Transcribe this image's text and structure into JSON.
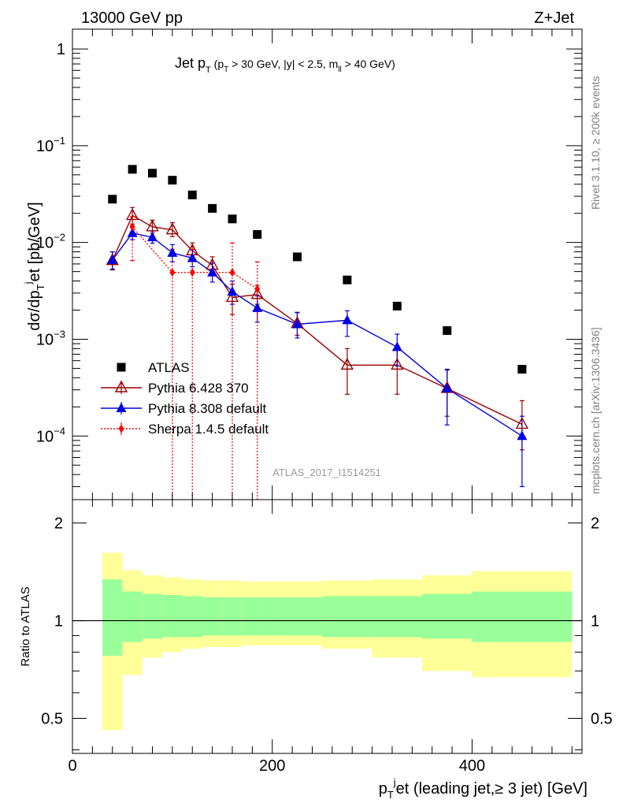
{
  "header": {
    "energy_label": "13000 GeV pp",
    "process_label": "Z+Jet"
  },
  "side_labels": {
    "rivet": "Rivet 3.1.10, ≥ 200k events",
    "mcplots": "mcplots.cern.ch [arXiv:1306.3436]"
  },
  "analysis_id": "ATLAS_2017_I1514251",
  "colors": {
    "atlas": "#000000",
    "pythia6": "#990000",
    "pythia8": "#0000e0",
    "sherpa": "#ff0000",
    "band_inner": "#99ff99",
    "band_outer": "#ffff99"
  },
  "chart_data": [
    {
      "type": "scatter",
      "title": "Jet p_T (p_T > 30 GeV, |y| < 2.5, m_ll > 40 GeV)",
      "title_parts": {
        "main": "Jet p",
        "main_sub": "T",
        "open": " (p",
        "open_sub": "T",
        "mid": " > 30 GeV, |y| < 2.5, m",
        "mid_sub": "ll",
        "close": " > 40 GeV)"
      },
      "ylabel": "dσ/dp_T^jet [pb/GeV]",
      "ylabel_parts": {
        "a": "dσ/dp",
        "sub": "T",
        "sup": "j",
        "b": "et [pb/GeV]"
      },
      "yscale": "log",
      "ylim": [
        2.2e-05,
        1.6
      ],
      "xlim": [
        0,
        510
      ],
      "y_ticks": [
        {
          "value": 1,
          "label": "1"
        },
        {
          "value": 0.1,
          "label": "10",
          "exp": "−1"
        },
        {
          "value": 0.01,
          "label": "10",
          "exp": "−2"
        },
        {
          "value": 0.001,
          "label": "10",
          "exp": "−3"
        },
        {
          "value": 0.0001,
          "label": "10",
          "exp": "−4"
        }
      ],
      "legend_position": "lower-left",
      "series": [
        {
          "name": "ATLAS",
          "marker": "square",
          "x": [
            40,
            60,
            80,
            100,
            120,
            140,
            160,
            185,
            225,
            275,
            325,
            375,
            450
          ],
          "y": [
            0.028,
            0.057,
            0.052,
            0.044,
            0.031,
            0.0225,
            0.0175,
            0.0121,
            0.0071,
            0.0041,
            0.0022,
            0.00123,
            0.00049
          ]
        },
        {
          "name": "Pythia 6.428 370",
          "marker": "open-triangle",
          "x": [
            40,
            60,
            80,
            100,
            120,
            140,
            160,
            185,
            225,
            275,
            325,
            375,
            450
          ],
          "y": [
            0.0065,
            0.019,
            0.0145,
            0.0135,
            0.0082,
            0.0058,
            0.0027,
            0.0029,
            0.00145,
            0.00054,
            0.00054,
            0.00031,
            0.000132
          ],
          "err_low": [
            0.0013,
            0.0035,
            0.002,
            0.002,
            0.0015,
            0.0012,
            0.0009,
            0.0006,
            0.00035,
            0.00027,
            0.00027,
            0.00015,
            6e-05
          ],
          "err_high": [
            0.0015,
            0.004,
            0.0025,
            0.0025,
            0.0017,
            0.0013,
            0.001,
            0.0007,
            0.00045,
            0.00026,
            0.00026,
            0.00017,
            0.0001
          ]
        },
        {
          "name": "Pythia 8.308 default",
          "marker": "triangle",
          "x": [
            40,
            60,
            80,
            100,
            120,
            140,
            160,
            185,
            225,
            275,
            325,
            375,
            450
          ],
          "y": [
            0.0066,
            0.0125,
            0.0113,
            0.0078,
            0.0069,
            0.0049,
            0.0031,
            0.0021,
            0.00143,
            0.00157,
            0.00083,
            0.00031,
            0.0001
          ],
          "err_low": [
            0.0013,
            0.0018,
            0.0015,
            0.0015,
            0.0013,
            0.001,
            0.0008,
            0.0006,
            0.0004,
            0.0005,
            0.0003,
            0.00018,
            7e-05
          ],
          "err_high": [
            0.0014,
            0.0022,
            0.0018,
            0.0017,
            0.0015,
            0.0012,
            0.0009,
            0.0007,
            0.00045,
            0.0004,
            0.0003,
            0.00018,
            6e-05
          ]
        },
        {
          "name": "Sherpa 1.4.5 default",
          "marker": "diamond",
          "x": [
            60,
            100,
            120,
            160,
            185
          ],
          "y": [
            0.0145,
            0.0049,
            0.0049,
            0.0049,
            0.0033
          ],
          "err_low": [
            0.008,
            0.0049,
            0.0049,
            0.0049,
            0.0033
          ],
          "err_high": [
            0.004,
            0.0036,
            0.0036,
            0.005,
            0.003
          ]
        }
      ]
    },
    {
      "type": "area",
      "ylabel": "Ratio to ATLAS",
      "ylim": [
        0.39,
        2.36
      ],
      "xlim": [
        0,
        510
      ],
      "reference_line": 1,
      "y_ticks": [
        {
          "value": 2,
          "label": "2"
        },
        {
          "value": 1,
          "label": "1"
        },
        {
          "value": 0.5,
          "label": "0.5"
        }
      ],
      "x_ticks": [
        {
          "value": 0,
          "label": "0"
        },
        {
          "value": 200,
          "label": "200"
        },
        {
          "value": 400,
          "label": "400"
        }
      ],
      "xlabel": "p_T^jet (leading jet,≥ 3 jet) [GeV]",
      "xlabel_parts": {
        "a": "p",
        "sub": "T",
        "sup": "j",
        "b": "et (leading jet,≥ 3 jet) [GeV]"
      },
      "bins": [
        {
          "lo": 30,
          "hi": 50,
          "inner": [
            0.78,
            1.34
          ],
          "outer": [
            0.46,
            1.62
          ]
        },
        {
          "lo": 50,
          "hi": 70,
          "inner": [
            0.86,
            1.23
          ],
          "outer": [
            0.68,
            1.43
          ]
        },
        {
          "lo": 70,
          "hi": 90,
          "inner": [
            0.88,
            1.21
          ],
          "outer": [
            0.77,
            1.38
          ]
        },
        {
          "lo": 90,
          "hi": 110,
          "inner": [
            0.89,
            1.2
          ],
          "outer": [
            0.8,
            1.36
          ]
        },
        {
          "lo": 110,
          "hi": 130,
          "inner": [
            0.89,
            1.19
          ],
          "outer": [
            0.82,
            1.34
          ]
        },
        {
          "lo": 130,
          "hi": 150,
          "inner": [
            0.9,
            1.18
          ],
          "outer": [
            0.83,
            1.33
          ]
        },
        {
          "lo": 150,
          "hi": 170,
          "inner": [
            0.9,
            1.18
          ],
          "outer": [
            0.83,
            1.33
          ]
        },
        {
          "lo": 170,
          "hi": 200,
          "inner": [
            0.9,
            1.18
          ],
          "outer": [
            0.84,
            1.32
          ]
        },
        {
          "lo": 200,
          "hi": 250,
          "inner": [
            0.9,
            1.18
          ],
          "outer": [
            0.84,
            1.32
          ]
        },
        {
          "lo": 250,
          "hi": 300,
          "inner": [
            0.89,
            1.19
          ],
          "outer": [
            0.82,
            1.33
          ]
        },
        {
          "lo": 300,
          "hi": 350,
          "inner": [
            0.89,
            1.19
          ],
          "outer": [
            0.77,
            1.34
          ]
        },
        {
          "lo": 350,
          "hi": 400,
          "inner": [
            0.88,
            1.21
          ],
          "outer": [
            0.7,
            1.38
          ]
        },
        {
          "lo": 400,
          "hi": 500,
          "inner": [
            0.86,
            1.23
          ],
          "outer": [
            0.67,
            1.42
          ]
        }
      ]
    }
  ]
}
